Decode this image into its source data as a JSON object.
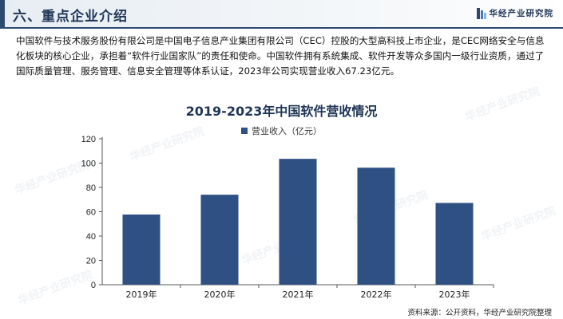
{
  "header": {
    "title": "六、重点企业介绍",
    "brand": "华经产业研究院"
  },
  "intro": "中国软件与技术服务股份有限公司是中国电子信息产业集团有限公司（CEC）控股的大型高科技上市企业，是CEC网络安全与信息化板块的核心企业，承担着“软件行业国家队”的责任和使命。中国软件拥有系统集成、软件开发等众多国内一级行业资质，通过了国际质量管理、服务管理、信息安全管理等体系认证，2023年公司实现营业收入67.23亿元。",
  "watermark": "华经产业研究院",
  "chart_data": {
    "type": "bar",
    "title": "2019-2023年中国软件营收情况",
    "categories": [
      "2019年",
      "2020年",
      "2021年",
      "2022年",
      "2023年"
    ],
    "series": [
      {
        "name": "营业收入（亿元）",
        "values": [
          57.7,
          74.0,
          103.5,
          96.2,
          67.23
        ]
      }
    ],
    "ylim": [
      0,
      120
    ],
    "yticks": [
      "0",
      "20",
      "40",
      "60",
      "80",
      "100",
      "120"
    ],
    "xlabel": "",
    "ylabel": "",
    "legend": "top-center",
    "grid": false,
    "colors": {
      "bar": "#2f5083",
      "axis": "#555555"
    }
  },
  "source": "资料来源：公开资料，华经产业研究院整理"
}
